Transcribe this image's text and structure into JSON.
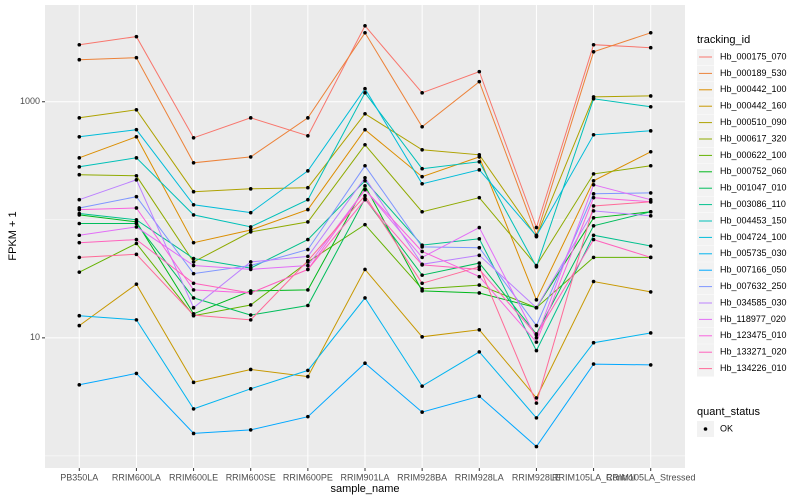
{
  "chart_data": {
    "type": "line",
    "x_label": "sample_name",
    "y_label": "FPKM + 1",
    "categories": [
      "PB350LA",
      "RRIM600LA",
      "RRIM600LE",
      "RRIM600SE",
      "RRIM600PE",
      "RRIM901LA",
      "RRIM928BA",
      "RRIM928LA",
      "RRIM928LE",
      "RRIM105LA_Control",
      "RRIM105LA_Stressed"
    ],
    "log_scale": true,
    "ylim": [
      0.79,
      6600
    ],
    "yticks": [
      10,
      1000
    ],
    "grid": true,
    "legend_title": "tracking_id",
    "legend_position": "right",
    "point_legend": {
      "title": "quant_status",
      "labels": [
        "OK"
      ],
      "color": "#000000"
    },
    "series": [
      {
        "name": "Hb_000175_070",
        "color": "#F8766D",
        "values": [
          3040,
          3560,
          495,
          731,
          515,
          4400,
          1190,
          1800,
          86,
          3040,
          2870
        ]
      },
      {
        "name": "Hb_000189_530",
        "color": "#EC8239",
        "values": [
          2270,
          2360,
          304,
          341,
          731,
          3840,
          614,
          1480,
          74,
          2650,
          3840
        ]
      },
      {
        "name": "Hb_000442_100",
        "color": "#DB8E00",
        "values": [
          335,
          505,
          64,
          82,
          122,
          580,
          232,
          341,
          21,
          214,
          377
        ]
      },
      {
        "name": "Hb_000442_160",
        "color": "#C79800",
        "values": [
          12.7,
          28.5,
          4.2,
          5.4,
          4.7,
          38,
          10.2,
          11.7,
          3.1,
          30,
          24.5
        ]
      },
      {
        "name": "Hb_000510_090",
        "color": "#AEA200",
        "values": [
          731,
          855,
          173,
          183,
          187,
          791,
          392,
          355,
          72,
          1100,
          1120
        ]
      },
      {
        "name": "Hb_000617_320",
        "color": "#8FAA00",
        "values": [
          241,
          236,
          44,
          79,
          96,
          432,
          117,
          154,
          41,
          245,
          287
        ]
      },
      {
        "name": "Hb_000622_100",
        "color": "#64B200",
        "values": [
          36,
          63,
          15.4,
          19,
          44,
          91,
          26,
          28,
          18,
          48,
          48
        ]
      },
      {
        "name": "Hb_000752_060",
        "color": "#00B81B",
        "values": [
          110,
          96,
          16,
          25,
          25.5,
          194,
          25,
          24,
          18,
          104,
          117
        ]
      },
      {
        "name": "Hb_001047_010",
        "color": "#00BD5C",
        "values": [
          93,
          93,
          21.8,
          15.6,
          18.8,
          151,
          34,
          43,
          10.8,
          89,
          117
        ]
      },
      {
        "name": "Hb_003086_110",
        "color": "#00C08D",
        "values": [
          113,
          100,
          47,
          39,
          68,
          214,
          61,
          69,
          7.8,
          74,
          60
        ]
      },
      {
        "name": "Hb_004453_150",
        "color": "#00C0B8",
        "values": [
          281,
          335,
          110,
          87,
          148,
          1190,
          271,
          310,
          40,
          1060,
          907
        ]
      },
      {
        "name": "Hb_004724_100",
        "color": "#00BCD9",
        "values": [
          505,
          580,
          134,
          115,
          260,
          1290,
          202,
          265,
          73,
          525,
          567
        ]
      },
      {
        "name": "Hb_005735_030",
        "color": "#00B4EF",
        "values": [
          15.4,
          14.2,
          2.5,
          3.7,
          5.3,
          21.8,
          3.9,
          7.6,
          2.1,
          9.1,
          11
        ]
      },
      {
        "name": "Hb_007166_050",
        "color": "#00A7FF",
        "values": [
          4.0,
          5.0,
          1.55,
          1.66,
          2.15,
          6.1,
          2.35,
          3.2,
          1.2,
          6.0,
          5.9
        ]
      },
      {
        "name": "Hb_007632_250",
        "color": "#7F96FF",
        "values": [
          126,
          157,
          35,
          41,
          56,
          287,
          59,
          58,
          12.7,
          166,
          169
        ]
      },
      {
        "name": "Hb_034585_030",
        "color": "#BC81FF",
        "values": [
          148,
          218,
          18,
          44,
          49,
          227,
          42,
          50,
          18,
          119,
          108
        ]
      },
      {
        "name": "Hb_118977_020",
        "color": "#E26EF7",
        "values": [
          74,
          87,
          41,
          38,
          41,
          180,
          48,
          86,
          10,
          198,
          148
        ]
      },
      {
        "name": "Hb_123475_010",
        "color": "#F863DF",
        "values": [
          122,
          126,
          25.5,
          24,
          38,
          180,
          54,
          33,
          9.2,
          154,
          142
        ]
      },
      {
        "name": "Hb_133271_020",
        "color": "#FF62BC",
        "values": [
          64,
          68,
          29,
          24,
          38,
          148,
          41.5,
          38,
          10.6,
          68,
          48
        ]
      },
      {
        "name": "Hb_134226_010",
        "color": "#FF6A98",
        "values": [
          48,
          51,
          15.6,
          14.2,
          45,
          160,
          29,
          40,
          2.8,
          131,
          142
        ]
      }
    ]
  }
}
